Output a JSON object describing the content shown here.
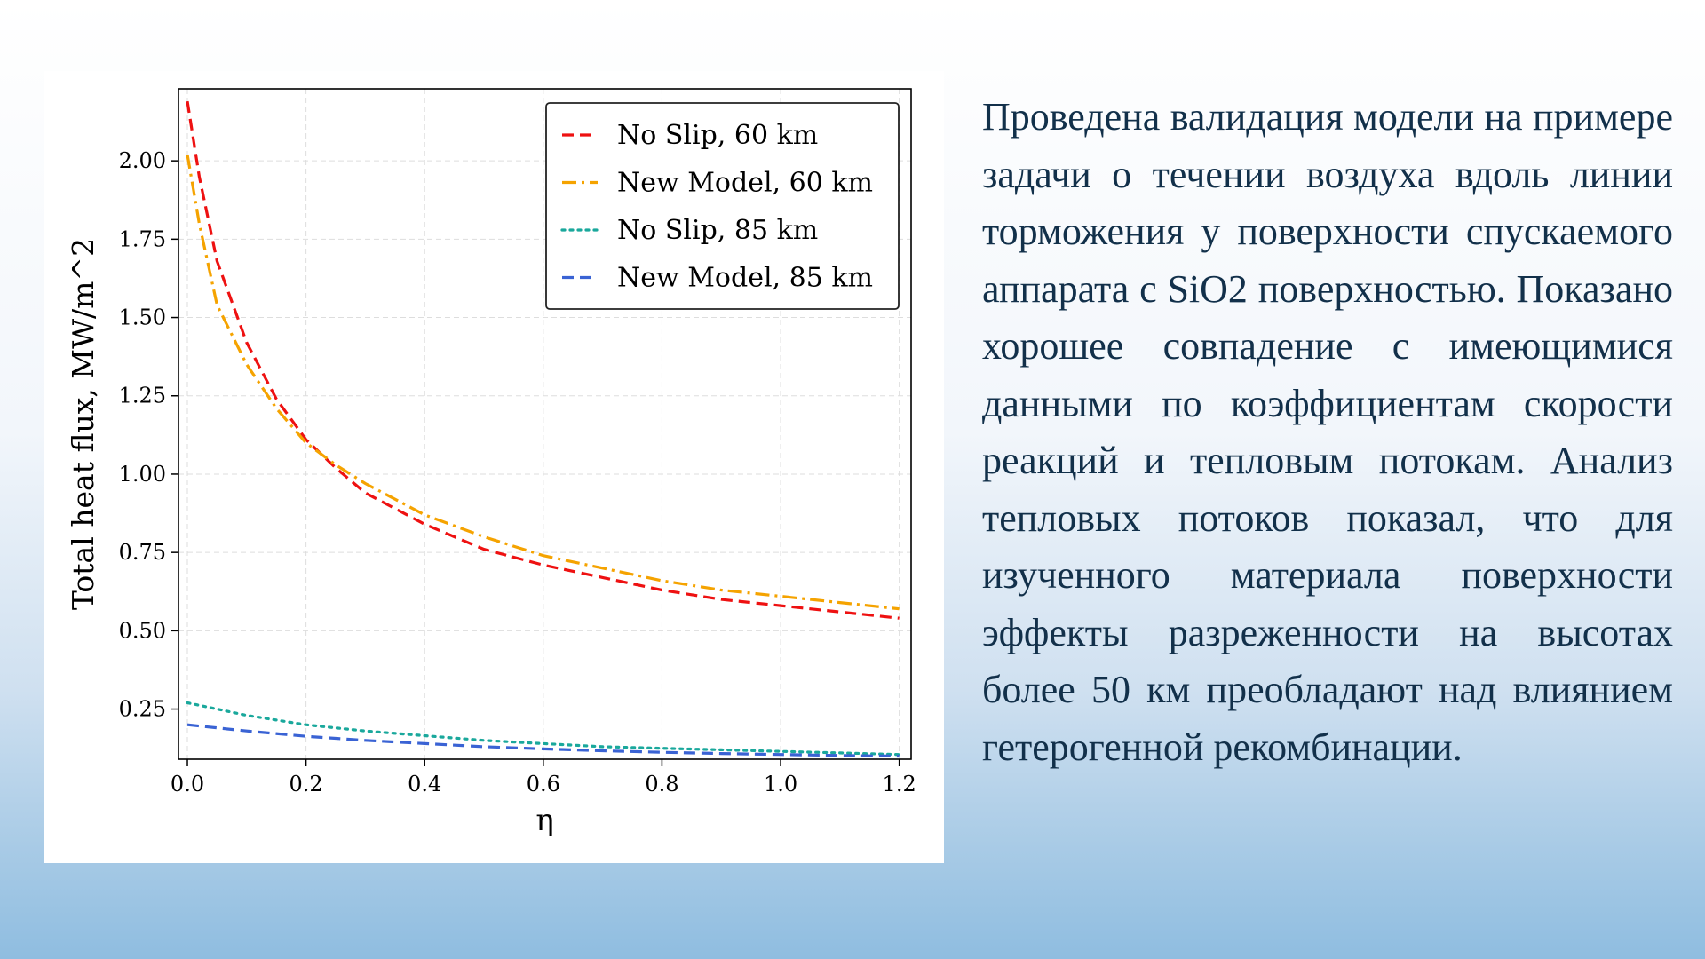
{
  "slide": {
    "paragraph": "Проведена валидация модели на примере задачи о течении воздуха вдоль линии торможения у поверхности спускаемого аппарата с SiO2 поверхностью. Показано хорошее совпадение с имеющимися данными по коэффициентам скорости реакций и тепловым потокам. Анализ тепловых потоков показал, что для изученного материала поверхности эффекты разреженности на высотах более 50 км преобладают над влиянием гетерогенной рекомбинации."
  },
  "chart_data": {
    "type": "line",
    "xlabel": "η",
    "ylabel": "Total heat flux, MW/m^2",
    "xlim": [
      -0.015,
      1.22
    ],
    "ylim": [
      0.09,
      2.23
    ],
    "xticks": [
      0.0,
      0.2,
      0.4,
      0.6,
      0.8,
      1.0,
      1.2
    ],
    "yticks": [
      0.25,
      0.5,
      0.75,
      1.0,
      1.25,
      1.5,
      1.75,
      2.0
    ],
    "xtick_labels": [
      "0.0",
      "0.2",
      "0.4",
      "0.6",
      "0.8",
      "1.0",
      "1.2"
    ],
    "ytick_labels": [
      "0.25",
      "0.50",
      "0.75",
      "1.00",
      "1.25",
      "1.50",
      "1.75",
      "2.00"
    ],
    "grid": true,
    "legend_position": "top-right",
    "series": [
      {
        "name": "No Slip, 60 km",
        "color": "#ee1111",
        "dash": "dashed",
        "x": [
          0.0,
          0.02,
          0.05,
          0.1,
          0.15,
          0.2,
          0.25,
          0.3,
          0.4,
          0.5,
          0.6,
          0.7,
          0.8,
          0.9,
          1.0,
          1.1,
          1.2
        ],
        "y": [
          2.19,
          1.95,
          1.68,
          1.42,
          1.24,
          1.11,
          1.02,
          0.94,
          0.84,
          0.76,
          0.71,
          0.67,
          0.63,
          0.6,
          0.58,
          0.56,
          0.54
        ]
      },
      {
        "name": "New Model, 60 km",
        "color": "#f5a300",
        "dash": "dashdot",
        "x": [
          0.0,
          0.02,
          0.05,
          0.1,
          0.15,
          0.2,
          0.25,
          0.3,
          0.4,
          0.5,
          0.6,
          0.7,
          0.8,
          0.9,
          1.0,
          1.1,
          1.2
        ],
        "y": [
          2.02,
          1.8,
          1.54,
          1.35,
          1.21,
          1.1,
          1.03,
          0.97,
          0.87,
          0.8,
          0.74,
          0.7,
          0.66,
          0.63,
          0.61,
          0.59,
          0.57
        ]
      },
      {
        "name": "No Slip, 85 km",
        "color": "#1aa89c",
        "dash": "dotted",
        "x": [
          0.0,
          0.1,
          0.2,
          0.3,
          0.4,
          0.5,
          0.6,
          0.7,
          0.8,
          0.9,
          1.0,
          1.1,
          1.2
        ],
        "y": [
          0.27,
          0.23,
          0.2,
          0.18,
          0.165,
          0.15,
          0.14,
          0.13,
          0.125,
          0.12,
          0.115,
          0.11,
          0.105
        ]
      },
      {
        "name": "New Model, 85 km",
        "color": "#3a63d4",
        "dash": "dashed",
        "x": [
          0.0,
          0.1,
          0.2,
          0.3,
          0.4,
          0.5,
          0.6,
          0.7,
          0.8,
          0.9,
          1.0,
          1.1,
          1.2
        ],
        "y": [
          0.2,
          0.18,
          0.163,
          0.15,
          0.14,
          0.13,
          0.123,
          0.117,
          0.112,
          0.108,
          0.105,
          0.102,
          0.1
        ]
      }
    ]
  }
}
